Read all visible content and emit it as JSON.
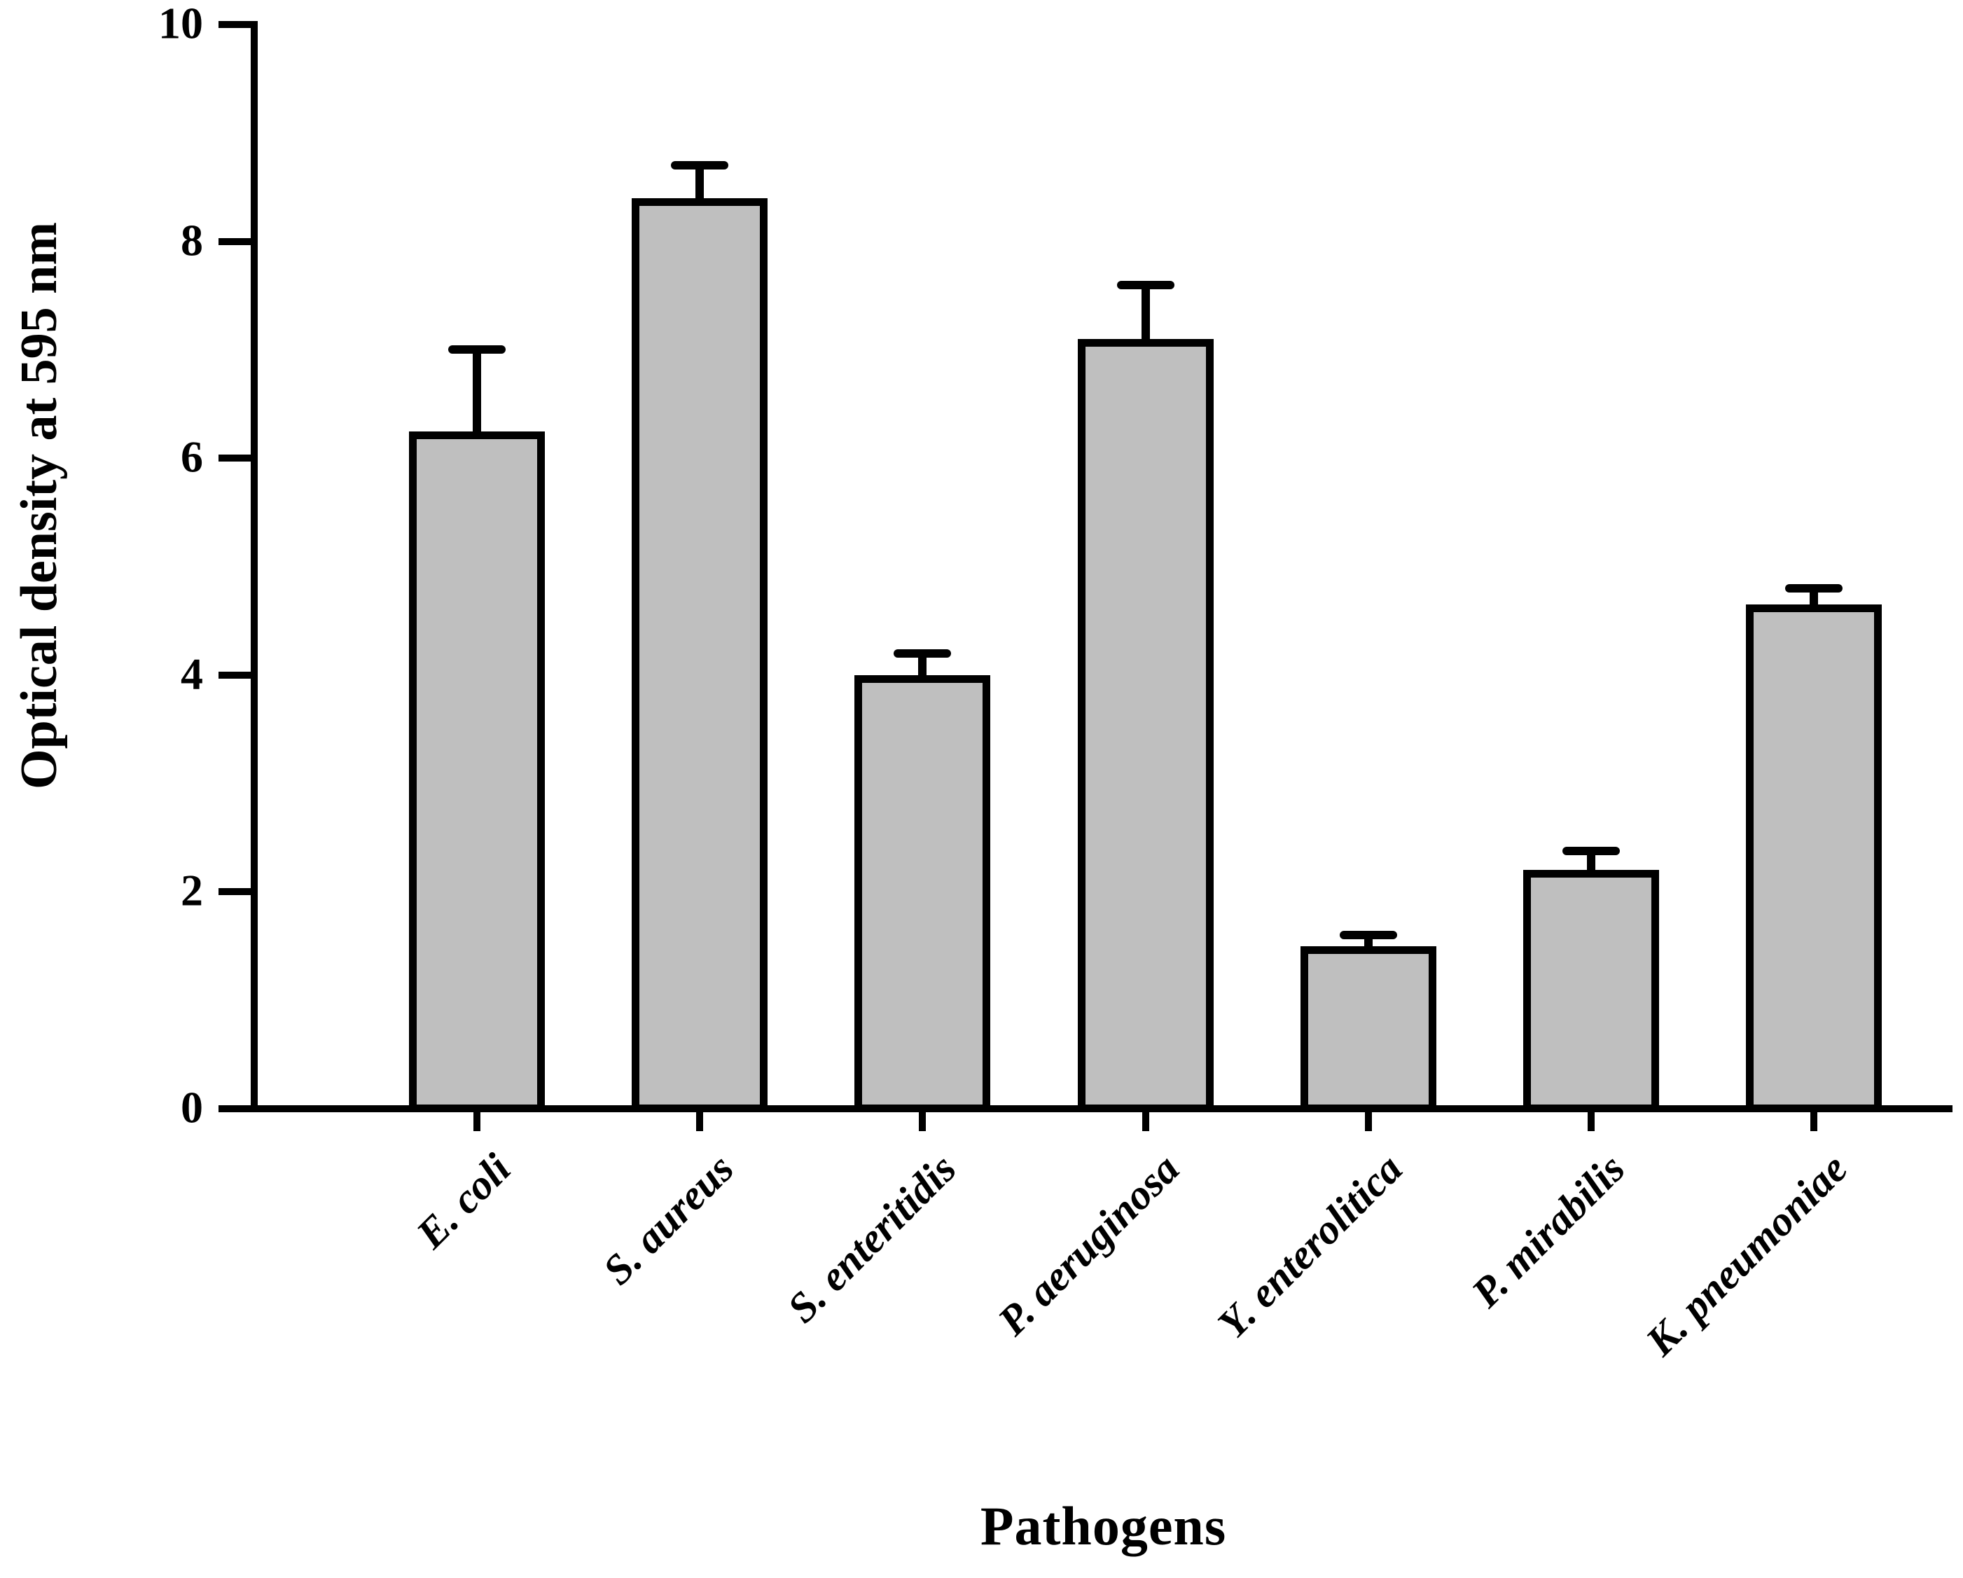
{
  "chart_data": {
    "type": "bar",
    "xlabel": "Pathogens",
    "ylabel": "Optical density at 595 nm",
    "categories": [
      "E. coli",
      "S. aureus",
      "S. enteritidis",
      "P. aeruginosa",
      "Y. enterolitica",
      "P. mirabilis",
      "K. pneumoniae"
    ],
    "values": [
      6.25,
      8.4,
      4.0,
      7.1,
      1.5,
      2.2,
      4.65
    ],
    "errors_plus": [
      0.75,
      0.3,
      0.2,
      0.5,
      0.1,
      0.18,
      0.15
    ],
    "ylim": [
      0,
      10
    ],
    "yticks": [
      0,
      2,
      4,
      6,
      8,
      10
    ],
    "grid": false,
    "legend": false,
    "bar_fill_color": "#bfbfbf",
    "bar_edge_color": "#000000",
    "error_bar_color": "#000000",
    "axis_color": "#000000",
    "text_color": "#000000"
  }
}
